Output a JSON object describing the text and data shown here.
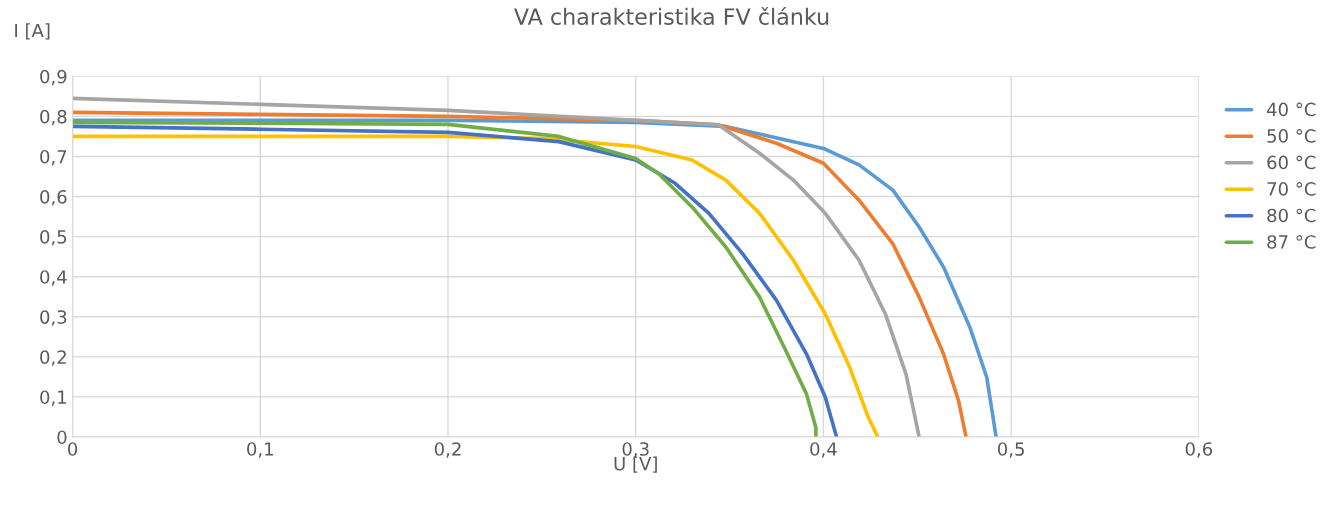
{
  "chart_data": {
    "type": "line",
    "title": "VA charakteristika FV článku",
    "xlabel": "U [V]",
    "ylabel": "I [A]",
    "xlim": [
      0,
      0.6
    ],
    "ylim": [
      0,
      0.9
    ],
    "xticks": [
      0,
      {
        "value": 0.1,
        "label": "0,1"
      },
      {
        "value": 0.2,
        "label": "0,2"
      },
      {
        "value": 0.3,
        "label": "0,3"
      },
      {
        "value": 0.4,
        "label": "0,4"
      },
      {
        "value": 0.5,
        "label": "0,5"
      },
      {
        "value": 0.6,
        "label": "0,6"
      }
    ],
    "yticks": [
      0,
      {
        "value": 0.1,
        "label": "0,1"
      },
      {
        "value": 0.2,
        "label": "0,2"
      },
      {
        "value": 0.3,
        "label": "0,3"
      },
      {
        "value": 0.4,
        "label": "0,4"
      },
      {
        "value": 0.5,
        "label": "0,5"
      },
      {
        "value": 0.6,
        "label": "0,6"
      },
      {
        "value": 0.7,
        "label": "0,7"
      },
      {
        "value": 0.8,
        "label": "0,8"
      },
      {
        "value": 0.9,
        "label": "0,9"
      }
    ],
    "grid": true,
    "legend": "right",
    "line_style": "solid",
    "series": [
      {
        "name": "40 °C",
        "color": "#5b9bd5",
        "x": [
          0,
          0.1,
          0.2,
          0.3,
          0.348,
          0.4,
          0.419,
          0.437,
          0.451,
          0.464,
          0.478,
          0.487,
          0.492
        ],
        "values": [
          0.79,
          0.79,
          0.79,
          0.785,
          0.775,
          0.72,
          0.679,
          0.616,
          0.524,
          0.424,
          0.274,
          0.149,
          0
        ]
      },
      {
        "name": "50 °C",
        "color": "#ed7d31",
        "x": [
          0,
          0.1,
          0.2,
          0.3,
          0.344,
          0.375,
          0.4,
          0.419,
          0.437,
          0.451,
          0.464,
          0.472,
          0.476
        ],
        "values": [
          0.81,
          0.805,
          0.8,
          0.79,
          0.779,
          0.733,
          0.683,
          0.591,
          0.482,
          0.349,
          0.207,
          0.09,
          0
        ]
      },
      {
        "name": "60 °C",
        "color": "#a5a5a5",
        "x": [
          0,
          0.1,
          0.2,
          0.3,
          0.344,
          0.366,
          0.384,
          0.401,
          0.419,
          0.433,
          0.444,
          0.451
        ],
        "values": [
          0.845,
          0.83,
          0.815,
          0.79,
          0.779,
          0.708,
          0.641,
          0.558,
          0.441,
          0.307,
          0.157,
          0
        ]
      },
      {
        "name": "70 °C",
        "color": "#ffc000",
        "x": [
          0,
          0.1,
          0.2,
          0.25,
          0.3,
          0.33,
          0.348,
          0.366,
          0.384,
          0.401,
          0.414,
          0.424,
          0.429
        ],
        "values": [
          0.75,
          0.75,
          0.75,
          0.745,
          0.725,
          0.691,
          0.641,
          0.558,
          0.441,
          0.307,
          0.174,
          0.048,
          0
        ]
      },
      {
        "name": "80 °C",
        "color": "#4472c4",
        "x": [
          0,
          0.1,
          0.2,
          0.259,
          0.3,
          0.321,
          0.339,
          0.357,
          0.375,
          0.391,
          0.401,
          0.407
        ],
        "values": [
          0.775,
          0.768,
          0.76,
          0.737,
          0.691,
          0.633,
          0.558,
          0.457,
          0.341,
          0.207,
          0.099,
          0
        ]
      },
      {
        "name": "87 °C",
        "color": "#70ad47",
        "x": [
          0,
          0.1,
          0.2,
          0.259,
          0.3,
          0.312,
          0.33,
          0.348,
          0.366,
          0.38,
          0.391,
          0.396,
          0.396
        ],
        "values": [
          0.785,
          0.783,
          0.78,
          0.75,
          0.695,
          0.658,
          0.574,
          0.474,
          0.349,
          0.215,
          0.107,
          0.023,
          0
        ]
      }
    ]
  }
}
